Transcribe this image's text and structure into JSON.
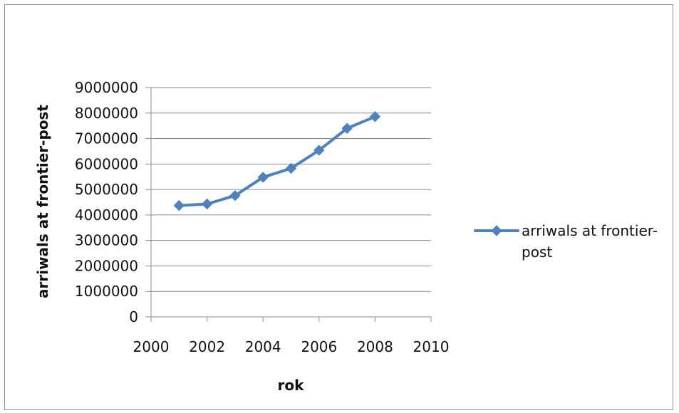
{
  "chart_data": {
    "type": "line",
    "title": "",
    "xlabel": "rok",
    "ylabel": "arriwals at frontier-post",
    "xlim": [
      2000,
      2010
    ],
    "ylim": [
      0,
      9000000
    ],
    "x_ticks": [
      2000,
      2002,
      2004,
      2006,
      2008,
      2010
    ],
    "x_tick_labels": [
      "2000",
      "2002",
      "2004",
      "2006",
      "2008",
      "2010"
    ],
    "y_ticks": [
      0,
      1000000,
      2000000,
      3000000,
      4000000,
      5000000,
      6000000,
      7000000,
      8000000,
      9000000
    ],
    "y_tick_labels": [
      "0",
      "1000000",
      "2000000",
      "3000000",
      "4000000",
      "5000000",
      "6000000",
      "7000000",
      "8000000",
      "9000000"
    ],
    "grid": "horizontal",
    "legend_position": "right",
    "legend_label_lines": [
      "arriwals at frontier-",
      "post"
    ],
    "series": [
      {
        "name": "arriwals at frontier-post",
        "color": "#4f81bd",
        "marker": "diamond",
        "x": [
          2001,
          2002,
          2003,
          2004,
          2005,
          2006,
          2007,
          2008
        ],
        "values": [
          4370000,
          4430000,
          4760000,
          5480000,
          5830000,
          6540000,
          7400000,
          7860000
        ]
      }
    ]
  }
}
